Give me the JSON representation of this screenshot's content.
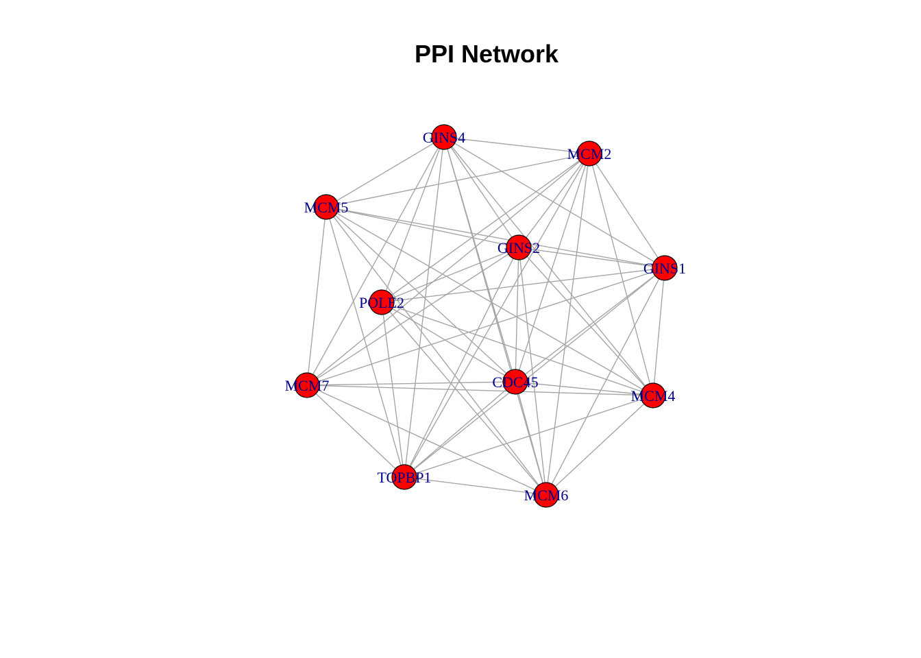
{
  "title": "PPI Network",
  "colors": {
    "node_fill": "#ff0000",
    "node_stroke": "#000000",
    "edge": "#a6a6a6",
    "label": "#00008b"
  },
  "nodes": [
    {
      "id": "GINS4",
      "label": "GINS4"
    },
    {
      "id": "MCM2",
      "label": "MCM2"
    },
    {
      "id": "MCM5",
      "label": "MCM5"
    },
    {
      "id": "GINS2",
      "label": "GINS2"
    },
    {
      "id": "GINS1",
      "label": "GINS1"
    },
    {
      "id": "POLE2",
      "label": "POLE2"
    },
    {
      "id": "MCM7",
      "label": "MCM7"
    },
    {
      "id": "CDC45",
      "label": "CDC45"
    },
    {
      "id": "MCM4",
      "label": "MCM4"
    },
    {
      "id": "TOPBP1",
      "label": "TOPBP1"
    },
    {
      "id": "MCM6",
      "label": "MCM6"
    }
  ],
  "edges": [
    [
      "GINS4",
      "MCM2"
    ],
    [
      "GINS4",
      "MCM5"
    ],
    [
      "GINS4",
      "GINS2"
    ],
    [
      "GINS4",
      "GINS1"
    ],
    [
      "GINS4",
      "POLE2"
    ],
    [
      "GINS4",
      "CDC45"
    ],
    [
      "GINS4",
      "MCM4"
    ],
    [
      "GINS4",
      "TOPBP1"
    ],
    [
      "GINS4",
      "MCM6"
    ],
    [
      "GINS4",
      "MCM7"
    ],
    [
      "MCM2",
      "MCM5"
    ],
    [
      "MCM2",
      "GINS2"
    ],
    [
      "MCM2",
      "GINS1"
    ],
    [
      "MCM2",
      "POLE2"
    ],
    [
      "MCM2",
      "MCM7"
    ],
    [
      "MCM2",
      "CDC45"
    ],
    [
      "MCM2",
      "MCM4"
    ],
    [
      "MCM2",
      "TOPBP1"
    ],
    [
      "MCM2",
      "MCM6"
    ],
    [
      "MCM5",
      "GINS2"
    ],
    [
      "MCM5",
      "GINS1"
    ],
    [
      "MCM5",
      "MCM7"
    ],
    [
      "MCM5",
      "CDC45"
    ],
    [
      "MCM5",
      "MCM4"
    ],
    [
      "MCM5",
      "TOPBP1"
    ],
    [
      "MCM5",
      "MCM6"
    ],
    [
      "GINS2",
      "GINS1"
    ],
    [
      "GINS2",
      "POLE2"
    ],
    [
      "GINS2",
      "MCM7"
    ],
    [
      "GINS2",
      "CDC45"
    ],
    [
      "GINS2",
      "MCM4"
    ],
    [
      "GINS2",
      "TOPBP1"
    ],
    [
      "GINS2",
      "MCM6"
    ],
    [
      "GINS1",
      "POLE2"
    ],
    [
      "GINS1",
      "MCM7"
    ],
    [
      "GINS1",
      "CDC45"
    ],
    [
      "GINS1",
      "MCM4"
    ],
    [
      "GINS1",
      "TOPBP1"
    ],
    [
      "GINS1",
      "MCM6"
    ],
    [
      "POLE2",
      "CDC45"
    ],
    [
      "POLE2",
      "MCM4"
    ],
    [
      "POLE2",
      "TOPBP1"
    ],
    [
      "POLE2",
      "MCM6"
    ],
    [
      "MCM7",
      "CDC45"
    ],
    [
      "MCM7",
      "MCM4"
    ],
    [
      "MCM7",
      "TOPBP1"
    ],
    [
      "MCM7",
      "MCM6"
    ],
    [
      "CDC45",
      "MCM4"
    ],
    [
      "CDC45",
      "TOPBP1"
    ],
    [
      "CDC45",
      "MCM6"
    ],
    [
      "MCM4",
      "TOPBP1"
    ],
    [
      "MCM4",
      "MCM6"
    ],
    [
      "TOPBP1",
      "MCM6"
    ]
  ]
}
